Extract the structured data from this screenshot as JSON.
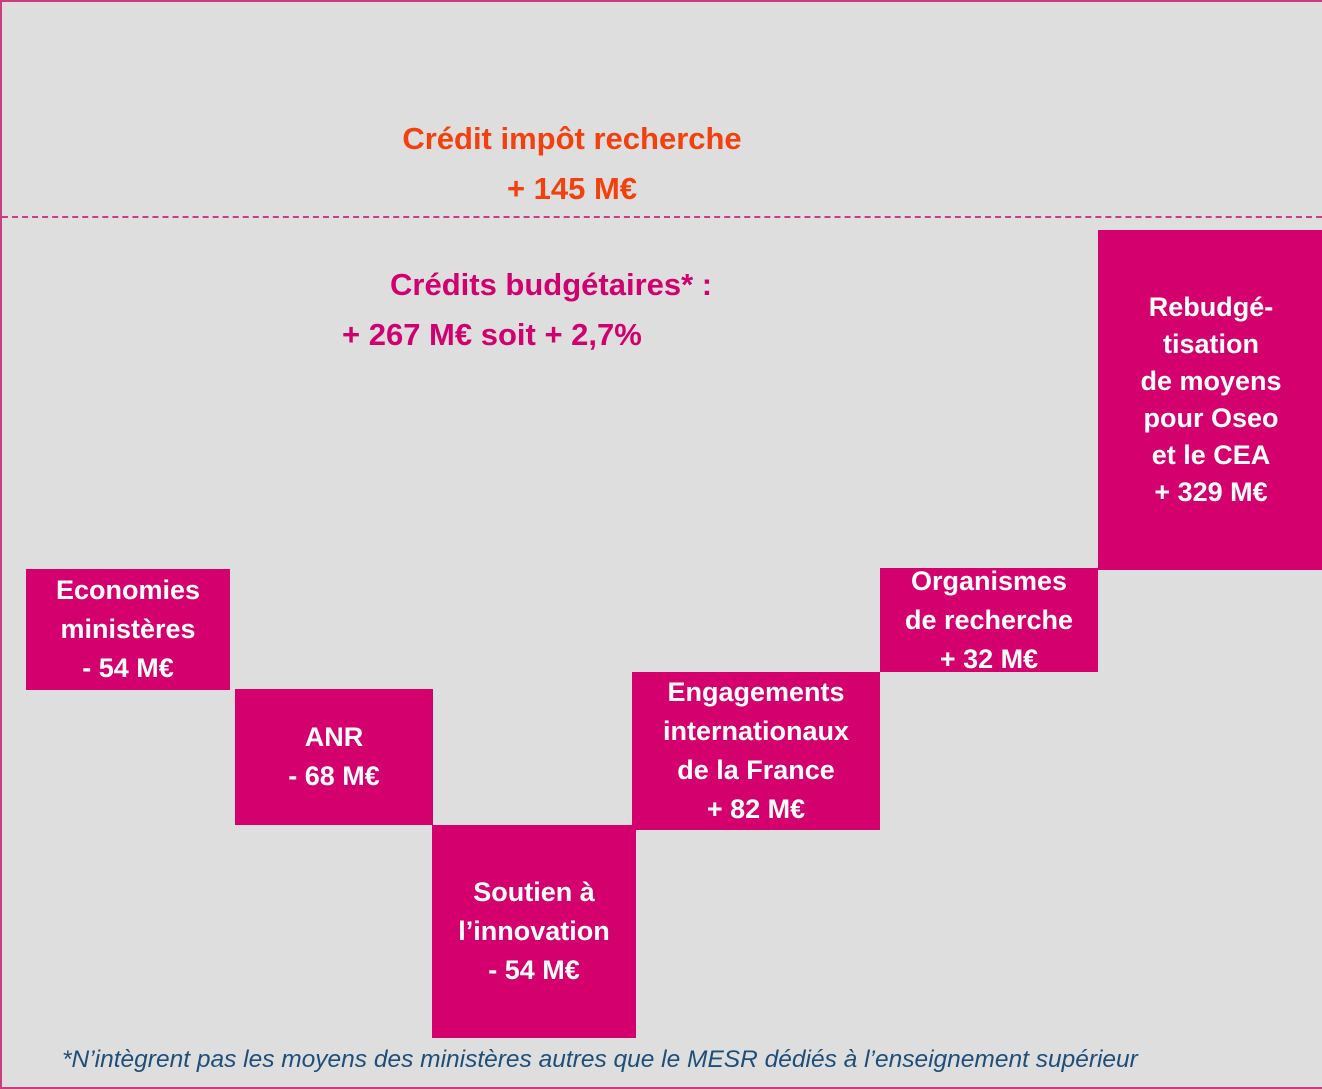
{
  "header": {
    "tax_credit": {
      "title": "Crédit impôt recherche",
      "amount": "+ 145 M€"
    },
    "budget": {
      "title": "Crédits budgétaires* :",
      "amount": "+ 267 M€ soit + 2,7%"
    }
  },
  "nodes": [
    {
      "lines": [
        "Economies",
        "ministères",
        "- 54 M€"
      ]
    },
    {
      "lines": [
        "ANR",
        "- 68 M€"
      ]
    },
    {
      "lines": [
        "Soutien à",
        "l’innovation",
        "- 54 M€"
      ]
    },
    {
      "lines": [
        "Engagements",
        "internationaux",
        "de la France",
        "+ 82 M€"
      ]
    },
    {
      "lines": [
        "Organismes",
        "de recherche",
        "+ 32 M€"
      ]
    },
    {
      "lines": [
        "Rebudgé-",
        "tisation",
        "de moyens",
        "pour Oseo",
        "et le CEA",
        "+ 329 M€"
      ]
    }
  ],
  "footnote": "*N’intègrent pas les moyens des ministères autres que le MESR dédiés à l’enseignement supérieur"
}
